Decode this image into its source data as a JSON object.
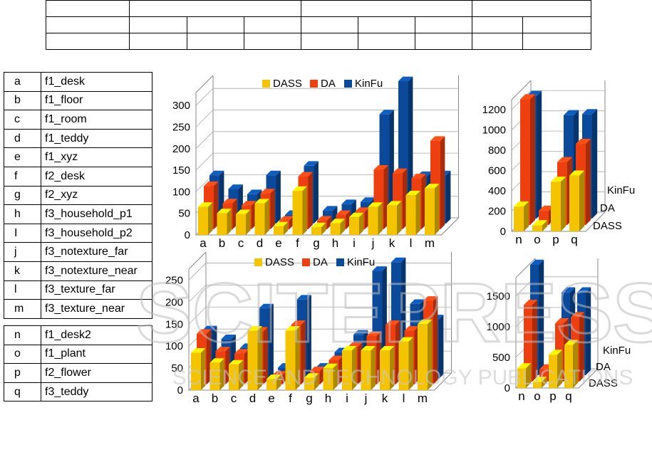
{
  "legend_table": [
    {
      "key": "a",
      "value": "f1_desk"
    },
    {
      "key": "b",
      "value": "f1_floor"
    },
    {
      "key": "c",
      "value": "f1_room"
    },
    {
      "key": "d",
      "value": "f1_teddy"
    },
    {
      "key": "e",
      "value": "f1_xyz"
    },
    {
      "key": "f",
      "value": "f2_desk"
    },
    {
      "key": "g",
      "value": "f2_xyz"
    },
    {
      "key": "h",
      "value": "f3_household_p1"
    },
    {
      "key": "I",
      "value": "f3_household_p2"
    },
    {
      "key": "j",
      "value": "f3_notexture_far"
    },
    {
      "key": "k",
      "value": "f3_notexture_near"
    },
    {
      "key": "l",
      "value": "f3_texture_far"
    },
    {
      "key": "m",
      "value": "f3_texture_near"
    }
  ],
  "legend_table_2": [
    {
      "key": "n",
      "value": "f1_desk2"
    },
    {
      "key": "o",
      "value": "f1_plant"
    },
    {
      "key": "p",
      "value": "f2_flower"
    },
    {
      "key": "q",
      "value": "f3_teddy"
    }
  ],
  "watermark": {
    "main": "SCITEPRESS",
    "sub": "SCIENCE AND TECHNOLOGY PUBLICATIONS"
  },
  "colors": {
    "DASS": "#f5c400",
    "DA": "#ee3f10",
    "KinFu": "#0b4a9a"
  },
  "chart_data": [
    {
      "type": "bar",
      "title": "",
      "legend": [
        "DASS",
        "DA",
        "KinFu"
      ],
      "categories": [
        "a",
        "b",
        "c",
        "d",
        "e",
        "f",
        "g",
        "h",
        "i",
        "j",
        "k",
        "l",
        "m"
      ],
      "series": [
        {
          "name": "DASS",
          "values": [
            65,
            50,
            48,
            73,
            20,
            102,
            18,
            27,
            41,
            65,
            68,
            92,
            108
          ]
        },
        {
          "name": "DA",
          "values": [
            100,
            60,
            55,
            83,
            20,
            122,
            20,
            33,
            40,
            138,
            130,
            118,
            205
          ]
        },
        {
          "name": "KinFu",
          "values": [
            112,
            80,
            68,
            112,
            20,
            134,
            30,
            45,
            50,
            253,
            330,
            110,
            112
          ]
        }
      ],
      "yticks": [
        0,
        50,
        100,
        150,
        200,
        250,
        300
      ],
      "ylim": [
        0,
        330
      ]
    },
    {
      "type": "bar",
      "title": "",
      "categories": [
        "n",
        "o",
        "p",
        "q"
      ],
      "depth_labels": [
        "DASS",
        "DA",
        "KinFu"
      ],
      "series": [
        {
          "name": "DASS",
          "values": [
            245,
            60,
            490,
            550
          ]
        },
        {
          "name": "DA",
          "values": [
            1240,
            140,
            620,
            800
          ]
        },
        {
          "name": "KinFu",
          "values": [
            1210,
            0,
            1020,
            1030
          ]
        }
      ],
      "yticks": [
        0,
        200,
        400,
        600,
        800,
        1000,
        1200
      ],
      "ylim": [
        0,
        1300
      ]
    },
    {
      "type": "bar",
      "title": "",
      "legend": [
        "DASS",
        "DA",
        "KinFu"
      ],
      "categories": [
        "a",
        "b",
        "c",
        "d",
        "e",
        "f",
        "g",
        "h",
        "i",
        "j",
        "k",
        "l",
        "m"
      ],
      "series": [
        {
          "name": "DASS",
          "values": [
            85,
            62,
            58,
            135,
            25,
            135,
            28,
            50,
            90,
            90,
            90,
            110,
            150
          ]
        },
        {
          "name": "DA",
          "values": [
            115,
            75,
            70,
            120,
            20,
            135,
            30,
            55,
            85,
            110,
            135,
            122,
            190
          ]
        },
        {
          "name": "KinFu",
          "values": [
            110,
            90,
            70,
            160,
            25,
            180,
            25,
            60,
            100,
            245,
            265,
            170,
            135
          ]
        }
      ],
      "yticks": [
        0,
        50,
        100,
        150,
        200,
        250
      ],
      "ylim": [
        0,
        275
      ]
    },
    {
      "type": "bar",
      "title": "",
      "categories": [
        "n",
        "o",
        "p",
        "q"
      ],
      "depth_labels": [
        "DASS",
        "DA",
        "KinFu"
      ],
      "series": [
        {
          "name": "DASS",
          "values": [
            320,
            100,
            540,
            700
          ]
        },
        {
          "name": "DA",
          "values": [
            1250,
            200,
            950,
            1050
          ]
        },
        {
          "name": "KinFu",
          "values": [
            1800,
            0,
            1350,
            1350
          ]
        }
      ],
      "yticks": [
        0,
        500,
        1000,
        1500
      ],
      "ylim": [
        0,
        1800
      ]
    }
  ]
}
